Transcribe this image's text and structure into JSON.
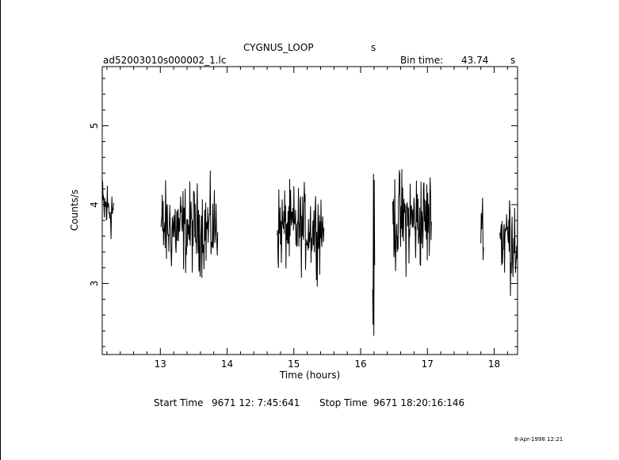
{
  "header": {
    "object": "CYGNUS_LOOP",
    "object_unit": "s",
    "filename": "ad52003010s000002_1.lc",
    "bin_time_label": "Bin time:",
    "bin_time_value": "43.74",
    "bin_time_unit": "s"
  },
  "footer": {
    "start_label": "Start Time",
    "start_value": "9671 12: 7:45:641",
    "stop_label": "Stop Time",
    "stop_value": "9671 18:20:16:146",
    "stamp": "8-Apr-1998 12:21"
  },
  "chart_data": {
    "type": "line",
    "xlabel": "Time (hours)",
    "ylabel": "Counts/s",
    "xlim": [
      12.13,
      18.35
    ],
    "ylim": [
      2.1,
      5.75
    ],
    "xticks": [
      13,
      14,
      15,
      16,
      17,
      18
    ],
    "yticks": [
      3,
      4,
      5
    ],
    "segments": [
      {
        "t0": 12.13,
        "t1": 12.3,
        "center": 3.95,
        "spread": 0.32
      },
      {
        "t0": 13.01,
        "t1": 13.86,
        "center": 3.7,
        "spread": 0.42
      },
      {
        "t0": 14.75,
        "t1": 15.45,
        "center": 3.7,
        "spread": 0.4
      },
      {
        "t0": 16.18,
        "t1": 16.21,
        "center": 3.2,
        "spread": 0.8
      },
      {
        "t0": 16.48,
        "t1": 17.06,
        "center": 3.8,
        "spread": 0.48
      },
      {
        "t0": 17.8,
        "t1": 17.84,
        "center": 3.8,
        "spread": 0.3
      },
      {
        "t0": 18.08,
        "t1": 18.35,
        "center": 3.6,
        "spread": 0.48
      }
    ]
  }
}
